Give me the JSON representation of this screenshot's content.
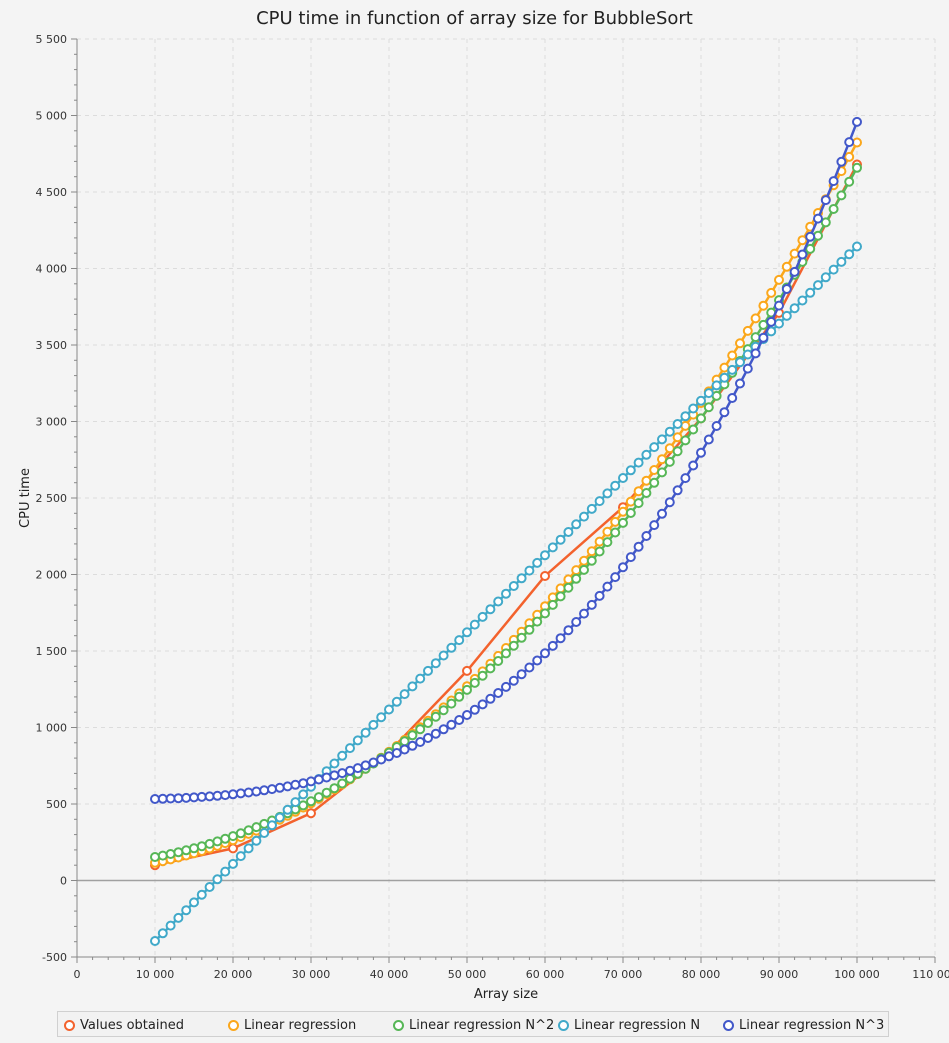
{
  "chart_data": {
    "type": "line",
    "title": "CPU time in function of array size for BubbleSort",
    "xlabel": "Array size",
    "ylabel": "CPU time",
    "xlim": [
      0,
      110000
    ],
    "ylim": [
      -500,
      5500
    ],
    "x_ticks": [
      0,
      10000,
      20000,
      30000,
      40000,
      50000,
      60000,
      70000,
      80000,
      90000,
      100000,
      110000
    ],
    "y_ticks": [
      -500,
      0,
      500,
      1000,
      1500,
      2000,
      2500,
      3000,
      3500,
      4000,
      4500,
      5000,
      5500
    ],
    "x_tick_labels": [
      "0",
      "10 000",
      "20 000",
      "30 000",
      "40 000",
      "50 000",
      "60 000",
      "70 000",
      "80 000",
      "90 000",
      "100 000",
      "110 000"
    ],
    "y_tick_labels": [
      "-500",
      "0",
      "500",
      "1 000",
      "1 500",
      "2 000",
      "2 500",
      "3 000",
      "3 500",
      "4 000",
      "4 500",
      "5 000",
      "5 500"
    ],
    "grid": true,
    "legend_position": "bottom",
    "series": [
      {
        "name": "Values obtained",
        "color": "#f3622d",
        "points": [
          [
            10000,
            100
          ],
          [
            20000,
            210
          ],
          [
            30000,
            440
          ],
          [
            40000,
            840
          ],
          [
            50000,
            1370
          ],
          [
            60000,
            1990
          ],
          [
            70000,
            2440
          ],
          [
            80000,
            3020
          ],
          [
            90000,
            3710
          ],
          [
            100000,
            4680
          ]
        ]
      },
      {
        "name": "Linear regression",
        "fit": "quadratic",
        "coef": [
          4.691e-07,
          0.00071,
          61.6
        ],
        "x_start": 10000,
        "x_end": 100000,
        "x_step": 1000,
        "color": "#fba71b"
      },
      {
        "name": "Linear regression N^2",
        "fit": "quadratic",
        "coef": [
          4.55e-07,
          0,
          108
        ],
        "x_start": 10000,
        "x_end": 100000,
        "x_step": 1000,
        "color": "#57b757"
      },
      {
        "name": "Linear regression N",
        "fit": "linear",
        "coef": [
          0.05044,
          -900
        ],
        "x_start": 10000,
        "x_end": 100000,
        "x_step": 1000,
        "color": "#41a9c9"
      },
      {
        "name": "Linear regression N^3",
        "fit": "cubic",
        "coef": [
          4.43e-12,
          0,
          0,
          528
        ],
        "x_start": 10000,
        "x_end": 100000,
        "x_step": 1000,
        "color": "#4258c9"
      }
    ]
  }
}
